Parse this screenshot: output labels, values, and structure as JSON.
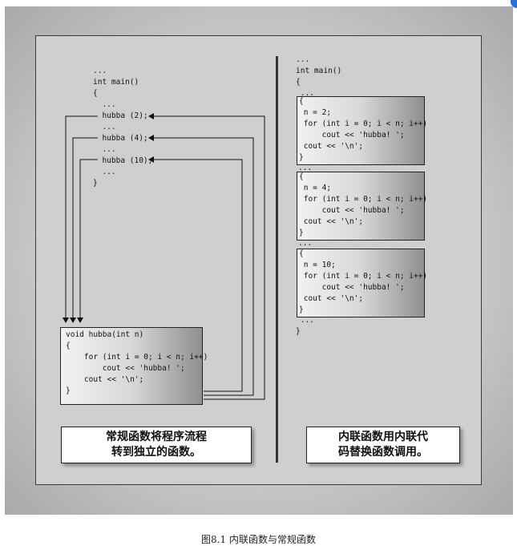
{
  "left": {
    "main_code": "...\nint main()\n{\n  ...\n  hubba (2);\n  ...\n  hubba (4);\n  ...\n  hubba (10);\n  ...\n}",
    "func_code": "void hubba(int n)\n{\n    for (int i = 0; i < n; i++)\n        cout << 'hubba! ';\n    cout << '\\n';\n}",
    "caption_line1": "常规函数将程序流程",
    "caption_line2": "转到独立的函数。"
  },
  "right": {
    "header_code": "...\nint main()\n{\n ...",
    "blocks": [
      "{\n n = 2;\n for (int i = 0; i < n; i++)\n     cout << 'hubba! ';\n cout << '\\n';\n}",
      "{\n n = 4;\n for (int i = 0; i < n; i++)\n     cout << 'hubba! ';\n cout << '\\n';\n}",
      "{\n n = 10;\n for (int i = 0; i < n; i++)\n     cout << 'hubba! ';\n cout << '\\n';\n}"
    ],
    "sep1": "...",
    "sep2": "...",
    "footer_code": " ...\n}",
    "caption_line1": "内联函数用内联代",
    "caption_line2": "码替换函数调用。"
  },
  "figure_caption": "图8.1 内联函数与常规函数"
}
